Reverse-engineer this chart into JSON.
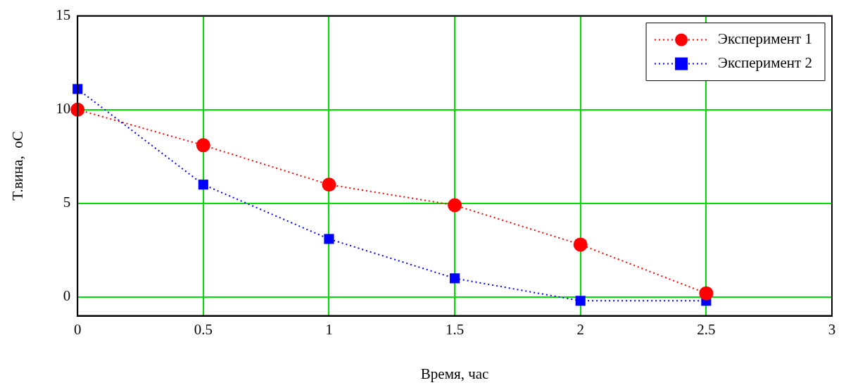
{
  "chart_data": {
    "type": "line",
    "xlabel": "Время, час",
    "ylabel": "T.вина,  oC",
    "x": [
      0,
      0.5,
      1,
      1.5,
      2,
      2.5
    ],
    "series": [
      {
        "name": "Эксперимент 1",
        "color": "#ff0000",
        "values": [
          10,
          8.1,
          6,
          4.9,
          2.8,
          0.2
        ],
        "marker": "circle"
      },
      {
        "name": "Эксперимент 2",
        "color": "#0000ff",
        "values": [
          11.1,
          6,
          3.1,
          1,
          -0.2,
          -0.2
        ],
        "marker": "square"
      }
    ],
    "xlim": [
      0,
      3
    ],
    "xticks": [
      0,
      0.5,
      1,
      1.5,
      2,
      2.5,
      3
    ],
    "ylim": [
      -1,
      15
    ],
    "yticks": [
      0,
      5,
      10,
      15
    ],
    "grid": true,
    "legend": "top right",
    "line_style": "dotted"
  }
}
